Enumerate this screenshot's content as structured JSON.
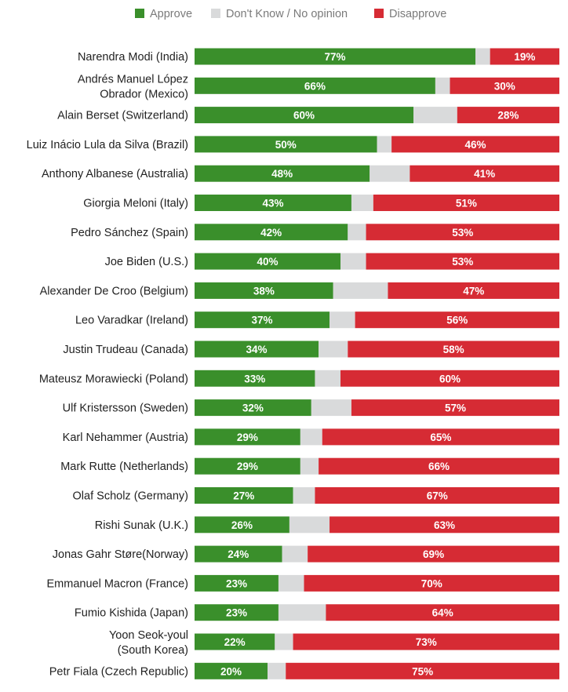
{
  "colors": {
    "approve": "#3a8f2b",
    "neutral": "#d9dadb",
    "disapprove": "#d62b34"
  },
  "chart_data": {
    "type": "bar",
    "orientation": "horizontal",
    "stacked": true,
    "legend_position": "top",
    "xlim": [
      0,
      100
    ],
    "legend": [
      "Approve",
      "Don't Know / No opinion",
      "Disapprove"
    ],
    "categories": [
      [
        "Narendra Modi (India)"
      ],
      [
        "Andrés Manuel López",
        "Obrador (Mexico)"
      ],
      [
        "Alain Berset (Switzerland)"
      ],
      [
        "Luiz Inácio Lula da Silva (Brazil)"
      ],
      [
        "Anthony Albanese (Australia)"
      ],
      [
        "Giorgia Meloni (Italy)"
      ],
      [
        "Pedro Sánchez (Spain)"
      ],
      [
        "Joe Biden (U.S.)"
      ],
      [
        "Alexander De Croo (Belgium)"
      ],
      [
        "Leo Varadkar (Ireland)"
      ],
      [
        "Justin Trudeau (Canada)"
      ],
      [
        "Mateusz Morawiecki (Poland)"
      ],
      [
        "Ulf Kristersson (Sweden)"
      ],
      [
        "Karl Nehammer (Austria)"
      ],
      [
        "Mark Rutte (Netherlands)"
      ],
      [
        "Olaf Scholz (Germany)"
      ],
      [
        "Rishi Sunak (U.K.)"
      ],
      [
        "Jonas Gahr Støre(Norway)"
      ],
      [
        "Emmanuel Macron (France)"
      ],
      [
        "Fumio Kishida (Japan)"
      ],
      [
        "Yoon Seok-youl",
        "(South Korea)"
      ],
      [
        "Petr Fiala (Czech Republic)"
      ]
    ],
    "series": [
      {
        "name": "Approve",
        "values": [
          77,
          66,
          60,
          50,
          48,
          43,
          42,
          40,
          38,
          37,
          34,
          33,
          32,
          29,
          29,
          27,
          26,
          24,
          23,
          23,
          22,
          20
        ],
        "labels": [
          "77%",
          "66%",
          "60%",
          "50%",
          "48%",
          "43%",
          "42%",
          "40%",
          "38%",
          "37%",
          "34%",
          "33%",
          "32%",
          "29%",
          "29%",
          "27%",
          "26%",
          "24%",
          "23%",
          "23%",
          "22%",
          "20%"
        ]
      },
      {
        "name": "Don't Know / No opinion",
        "values": [
          4,
          4,
          12,
          4,
          11,
          6,
          5,
          7,
          15,
          7,
          8,
          7,
          11,
          6,
          5,
          6,
          11,
          7,
          7,
          13,
          5,
          5
        ],
        "labels": []
      },
      {
        "name": "Disapprove",
        "values": [
          19,
          30,
          28,
          46,
          41,
          51,
          53,
          53,
          47,
          56,
          58,
          60,
          57,
          65,
          66,
          67,
          63,
          69,
          70,
          64,
          73,
          75
        ],
        "labels": [
          "19%",
          "30%",
          "28%",
          "46%",
          "41%",
          "51%",
          "53%",
          "53%",
          "47%",
          "56%",
          "58%",
          "60%",
          "57%",
          "65%",
          "66%",
          "67%",
          "63%",
          "69%",
          "70%",
          "64%",
          "73%",
          "75%"
        ]
      }
    ]
  }
}
